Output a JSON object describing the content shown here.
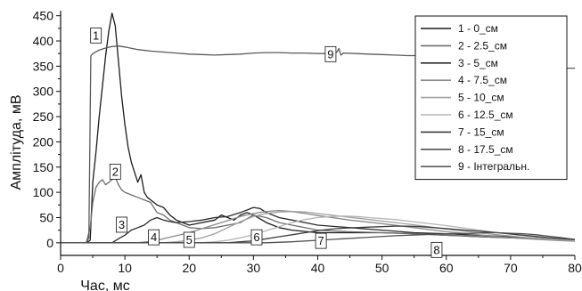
{
  "chart_data": {
    "type": "line",
    "xlabel": "Час, мс",
    "ylabel": "Амплітуда, мВ",
    "xlim": [
      0,
      80
    ],
    "ylim": [
      -25,
      460
    ],
    "x_ticks": [
      0,
      10,
      20,
      30,
      40,
      50,
      60,
      70,
      80
    ],
    "y_ticks": [
      0,
      50,
      100,
      150,
      200,
      250,
      300,
      350,
      400,
      450
    ],
    "grid": false,
    "legend_position": "top-right",
    "series": [
      {
        "name": "1 - 0_см",
        "label": "1",
        "label_at": [
          5.5,
          410
        ],
        "color": "#1c1c1c",
        "points": [
          [
            0,
            0
          ],
          [
            4,
            0
          ],
          [
            4.6,
            5
          ],
          [
            5,
            120
          ],
          [
            5.5,
            180
          ],
          [
            6,
            250
          ],
          [
            6.5,
            310
          ],
          [
            7,
            370
          ],
          [
            7.5,
            420
          ],
          [
            8,
            455
          ],
          [
            8.5,
            430
          ],
          [
            9,
            360
          ],
          [
            9.5,
            290
          ],
          [
            10,
            235
          ],
          [
            10.5,
            190
          ],
          [
            11,
            160
          ],
          [
            11.5,
            140
          ],
          [
            12,
            120
          ],
          [
            12.5,
            135
          ],
          [
            13,
            100
          ],
          [
            13.5,
            90
          ],
          [
            14,
            85
          ],
          [
            15,
            75
          ],
          [
            16,
            70
          ],
          [
            17,
            55
          ],
          [
            18,
            45
          ],
          [
            19,
            40
          ],
          [
            20,
            35
          ],
          [
            22,
            40
          ],
          [
            24,
            45
          ],
          [
            25,
            55
          ],
          [
            26,
            50
          ],
          [
            27,
            45
          ],
          [
            28,
            55
          ],
          [
            29,
            60
          ],
          [
            30,
            55
          ],
          [
            32,
            40
          ],
          [
            34,
            30
          ],
          [
            36,
            25
          ],
          [
            40,
            20
          ],
          [
            45,
            20
          ],
          [
            50,
            20
          ],
          [
            55,
            18
          ],
          [
            60,
            15
          ],
          [
            65,
            12
          ],
          [
            70,
            10
          ],
          [
            75,
            8
          ],
          [
            80,
            5
          ]
        ]
      },
      {
        "name": "2 - 2.5_см",
        "label": "2",
        "label_at": [
          8.5,
          140
        ],
        "color": "#6e6e6e",
        "points": [
          [
            0,
            0
          ],
          [
            4,
            0
          ],
          [
            4.6,
            30
          ],
          [
            5,
            80
          ],
          [
            5.5,
            110
          ],
          [
            6,
            120
          ],
          [
            6.5,
            125
          ],
          [
            7,
            115
          ],
          [
            7.5,
            120
          ],
          [
            8,
            125
          ],
          [
            8.5,
            130
          ],
          [
            9,
            115
          ],
          [
            9.5,
            105
          ],
          [
            10,
            100
          ],
          [
            11,
            95
          ],
          [
            12,
            90
          ],
          [
            13,
            85
          ],
          [
            14,
            80
          ],
          [
            15,
            60
          ],
          [
            16,
            55
          ],
          [
            17,
            45
          ],
          [
            18,
            40
          ],
          [
            20,
            30
          ],
          [
            22,
            28
          ],
          [
            24,
            30
          ],
          [
            26,
            35
          ],
          [
            28,
            40
          ],
          [
            30,
            55
          ],
          [
            32,
            50
          ],
          [
            34,
            40
          ],
          [
            36,
            35
          ],
          [
            40,
            25
          ],
          [
            45,
            22
          ],
          [
            50,
            20
          ],
          [
            55,
            18
          ],
          [
            60,
            15
          ],
          [
            65,
            12
          ],
          [
            70,
            10
          ],
          [
            75,
            8
          ],
          [
            80,
            6
          ]
        ]
      },
      {
        "name": "3 - 5_см",
        "label": "3",
        "label_at": [
          9.5,
          35
        ],
        "color": "#2a2a2a",
        "points": [
          [
            0,
            0
          ],
          [
            8,
            0
          ],
          [
            9,
            8
          ],
          [
            10,
            15
          ],
          [
            11,
            25
          ],
          [
            12,
            30
          ],
          [
            13,
            35
          ],
          [
            14,
            45
          ],
          [
            15,
            50
          ],
          [
            16,
            45
          ],
          [
            17,
            42
          ],
          [
            18,
            40
          ],
          [
            20,
            42
          ],
          [
            22,
            45
          ],
          [
            24,
            50
          ],
          [
            26,
            52
          ],
          [
            28,
            60
          ],
          [
            29,
            65
          ],
          [
            30,
            70
          ],
          [
            31,
            68
          ],
          [
            32,
            60
          ],
          [
            34,
            50
          ],
          [
            36,
            45
          ],
          [
            38,
            40
          ],
          [
            40,
            35
          ],
          [
            45,
            30
          ],
          [
            50,
            25
          ],
          [
            55,
            20
          ],
          [
            60,
            18
          ],
          [
            65,
            15
          ],
          [
            70,
            12
          ],
          [
            75,
            8
          ],
          [
            80,
            5
          ]
        ]
      },
      {
        "name": "4 - 7.5_см",
        "label": "4",
        "label_at": [
          14.5,
          10
        ],
        "color": "#8a8a8a",
        "points": [
          [
            0,
            0
          ],
          [
            12,
            0
          ],
          [
            14,
            3
          ],
          [
            16,
            8
          ],
          [
            18,
            14
          ],
          [
            20,
            20
          ],
          [
            22,
            28
          ],
          [
            24,
            36
          ],
          [
            26,
            44
          ],
          [
            28,
            52
          ],
          [
            30,
            58
          ],
          [
            32,
            62
          ],
          [
            34,
            64
          ],
          [
            36,
            62
          ],
          [
            38,
            58
          ],
          [
            40,
            54
          ],
          [
            45,
            45
          ],
          [
            50,
            38
          ],
          [
            55,
            30
          ],
          [
            60,
            22
          ],
          [
            65,
            16
          ],
          [
            70,
            10
          ],
          [
            75,
            6
          ],
          [
            80,
            3
          ]
        ]
      },
      {
        "name": "5 - 10_см",
        "label": "5",
        "label_at": [
          20.0,
          5
        ],
        "color": "#a0a0a0",
        "points": [
          [
            0,
            0
          ],
          [
            16,
            0
          ],
          [
            18,
            2
          ],
          [
            20,
            5
          ],
          [
            22,
            10
          ],
          [
            24,
            18
          ],
          [
            26,
            30
          ],
          [
            28,
            42
          ],
          [
            30,
            52
          ],
          [
            32,
            58
          ],
          [
            34,
            61
          ],
          [
            36,
            62
          ],
          [
            38,
            61
          ],
          [
            40,
            58
          ],
          [
            44,
            52
          ],
          [
            48,
            46
          ],
          [
            52,
            40
          ],
          [
            56,
            34
          ],
          [
            60,
            27
          ],
          [
            64,
            21
          ],
          [
            68,
            16
          ],
          [
            72,
            11
          ],
          [
            76,
            7
          ],
          [
            80,
            4
          ]
        ]
      },
      {
        "name": "6 - 12.5_см",
        "label": "6",
        "label_at": [
          30.5,
          10
        ],
        "color": "#b5b5b5",
        "points": [
          [
            0,
            0
          ],
          [
            22,
            0
          ],
          [
            24,
            2
          ],
          [
            26,
            5
          ],
          [
            28,
            10
          ],
          [
            30,
            16
          ],
          [
            32,
            24
          ],
          [
            34,
            32
          ],
          [
            36,
            40
          ],
          [
            38,
            46
          ],
          [
            40,
            50
          ],
          [
            42,
            52
          ],
          [
            44,
            53
          ],
          [
            46,
            52
          ],
          [
            48,
            50
          ],
          [
            52,
            46
          ],
          [
            56,
            40
          ],
          [
            60,
            34
          ],
          [
            64,
            27
          ],
          [
            68,
            20
          ],
          [
            72,
            14
          ],
          [
            76,
            9
          ],
          [
            80,
            5
          ]
        ]
      },
      {
        "name": "7 - 15_см",
        "label": "7",
        "label_at": [
          40.5,
          3
        ],
        "color": "#3c3c3c",
        "points": [
          [
            0,
            0
          ],
          [
            26,
            0
          ],
          [
            28,
            2
          ],
          [
            30,
            4
          ],
          [
            32,
            8
          ],
          [
            34,
            12
          ],
          [
            36,
            16
          ],
          [
            38,
            20
          ],
          [
            40,
            24
          ],
          [
            42,
            27
          ],
          [
            44,
            29
          ],
          [
            46,
            30
          ],
          [
            48,
            31
          ],
          [
            50,
            32
          ],
          [
            52,
            33
          ],
          [
            54,
            33
          ],
          [
            56,
            32
          ],
          [
            58,
            30
          ],
          [
            60,
            28
          ],
          [
            64,
            24
          ],
          [
            68,
            20
          ],
          [
            72,
            15
          ],
          [
            76,
            10
          ],
          [
            80,
            6
          ]
        ]
      },
      {
        "name": "8 - 17.5_см",
        "label": "8",
        "label_at": [
          58.5,
          -15
        ],
        "color": "#505050",
        "points": [
          [
            0,
            0
          ],
          [
            32,
            0
          ],
          [
            36,
            2
          ],
          [
            40,
            5
          ],
          [
            44,
            8
          ],
          [
            48,
            11
          ],
          [
            52,
            14
          ],
          [
            56,
            16
          ],
          [
            60,
            18
          ],
          [
            64,
            19
          ],
          [
            66,
            20
          ],
          [
            68,
            20
          ],
          [
            70,
            19
          ],
          [
            72,
            18
          ],
          [
            74,
            16
          ],
          [
            76,
            13
          ],
          [
            78,
            10
          ],
          [
            80,
            7
          ]
        ]
      },
      {
        "name": "9 - Інтегральн.",
        "label": "9",
        "label_at": [
          42.0,
          373
        ],
        "color": "#5a5a5a",
        "points": [
          [
            0,
            0
          ],
          [
            4,
            0
          ],
          [
            4.4,
            10
          ],
          [
            4.7,
            370
          ],
          [
            5,
            375
          ],
          [
            6,
            382
          ],
          [
            7,
            386
          ],
          [
            8,
            389
          ],
          [
            9,
            390
          ],
          [
            10,
            388
          ],
          [
            12,
            383
          ],
          [
            14,
            380
          ],
          [
            16,
            378
          ],
          [
            18,
            376
          ],
          [
            20,
            374
          ],
          [
            22,
            373
          ],
          [
            24,
            372
          ],
          [
            26,
            373
          ],
          [
            28,
            374
          ],
          [
            30,
            376
          ],
          [
            32,
            377
          ],
          [
            34,
            377
          ],
          [
            36,
            376
          ],
          [
            38,
            376
          ],
          [
            40,
            375
          ],
          [
            42,
            375
          ],
          [
            43,
            378
          ],
          [
            43.3,
            385
          ],
          [
            43.6,
            372
          ],
          [
            44,
            376
          ],
          [
            46,
            375
          ],
          [
            48,
            374
          ],
          [
            50,
            373
          ],
          [
            52,
            372
          ],
          [
            54,
            371
          ],
          [
            56,
            371
          ],
          [
            58,
            370
          ],
          [
            60,
            369
          ],
          [
            62,
            368
          ],
          [
            64,
            367
          ],
          [
            66,
            366
          ],
          [
            68,
            365
          ],
          [
            70,
            364
          ],
          [
            72,
            363
          ],
          [
            74,
            362
          ],
          [
            76,
            361
          ],
          [
            77,
            358
          ],
          [
            77.5,
            348
          ],
          [
            78,
            346
          ],
          [
            80,
            346
          ]
        ]
      }
    ]
  }
}
